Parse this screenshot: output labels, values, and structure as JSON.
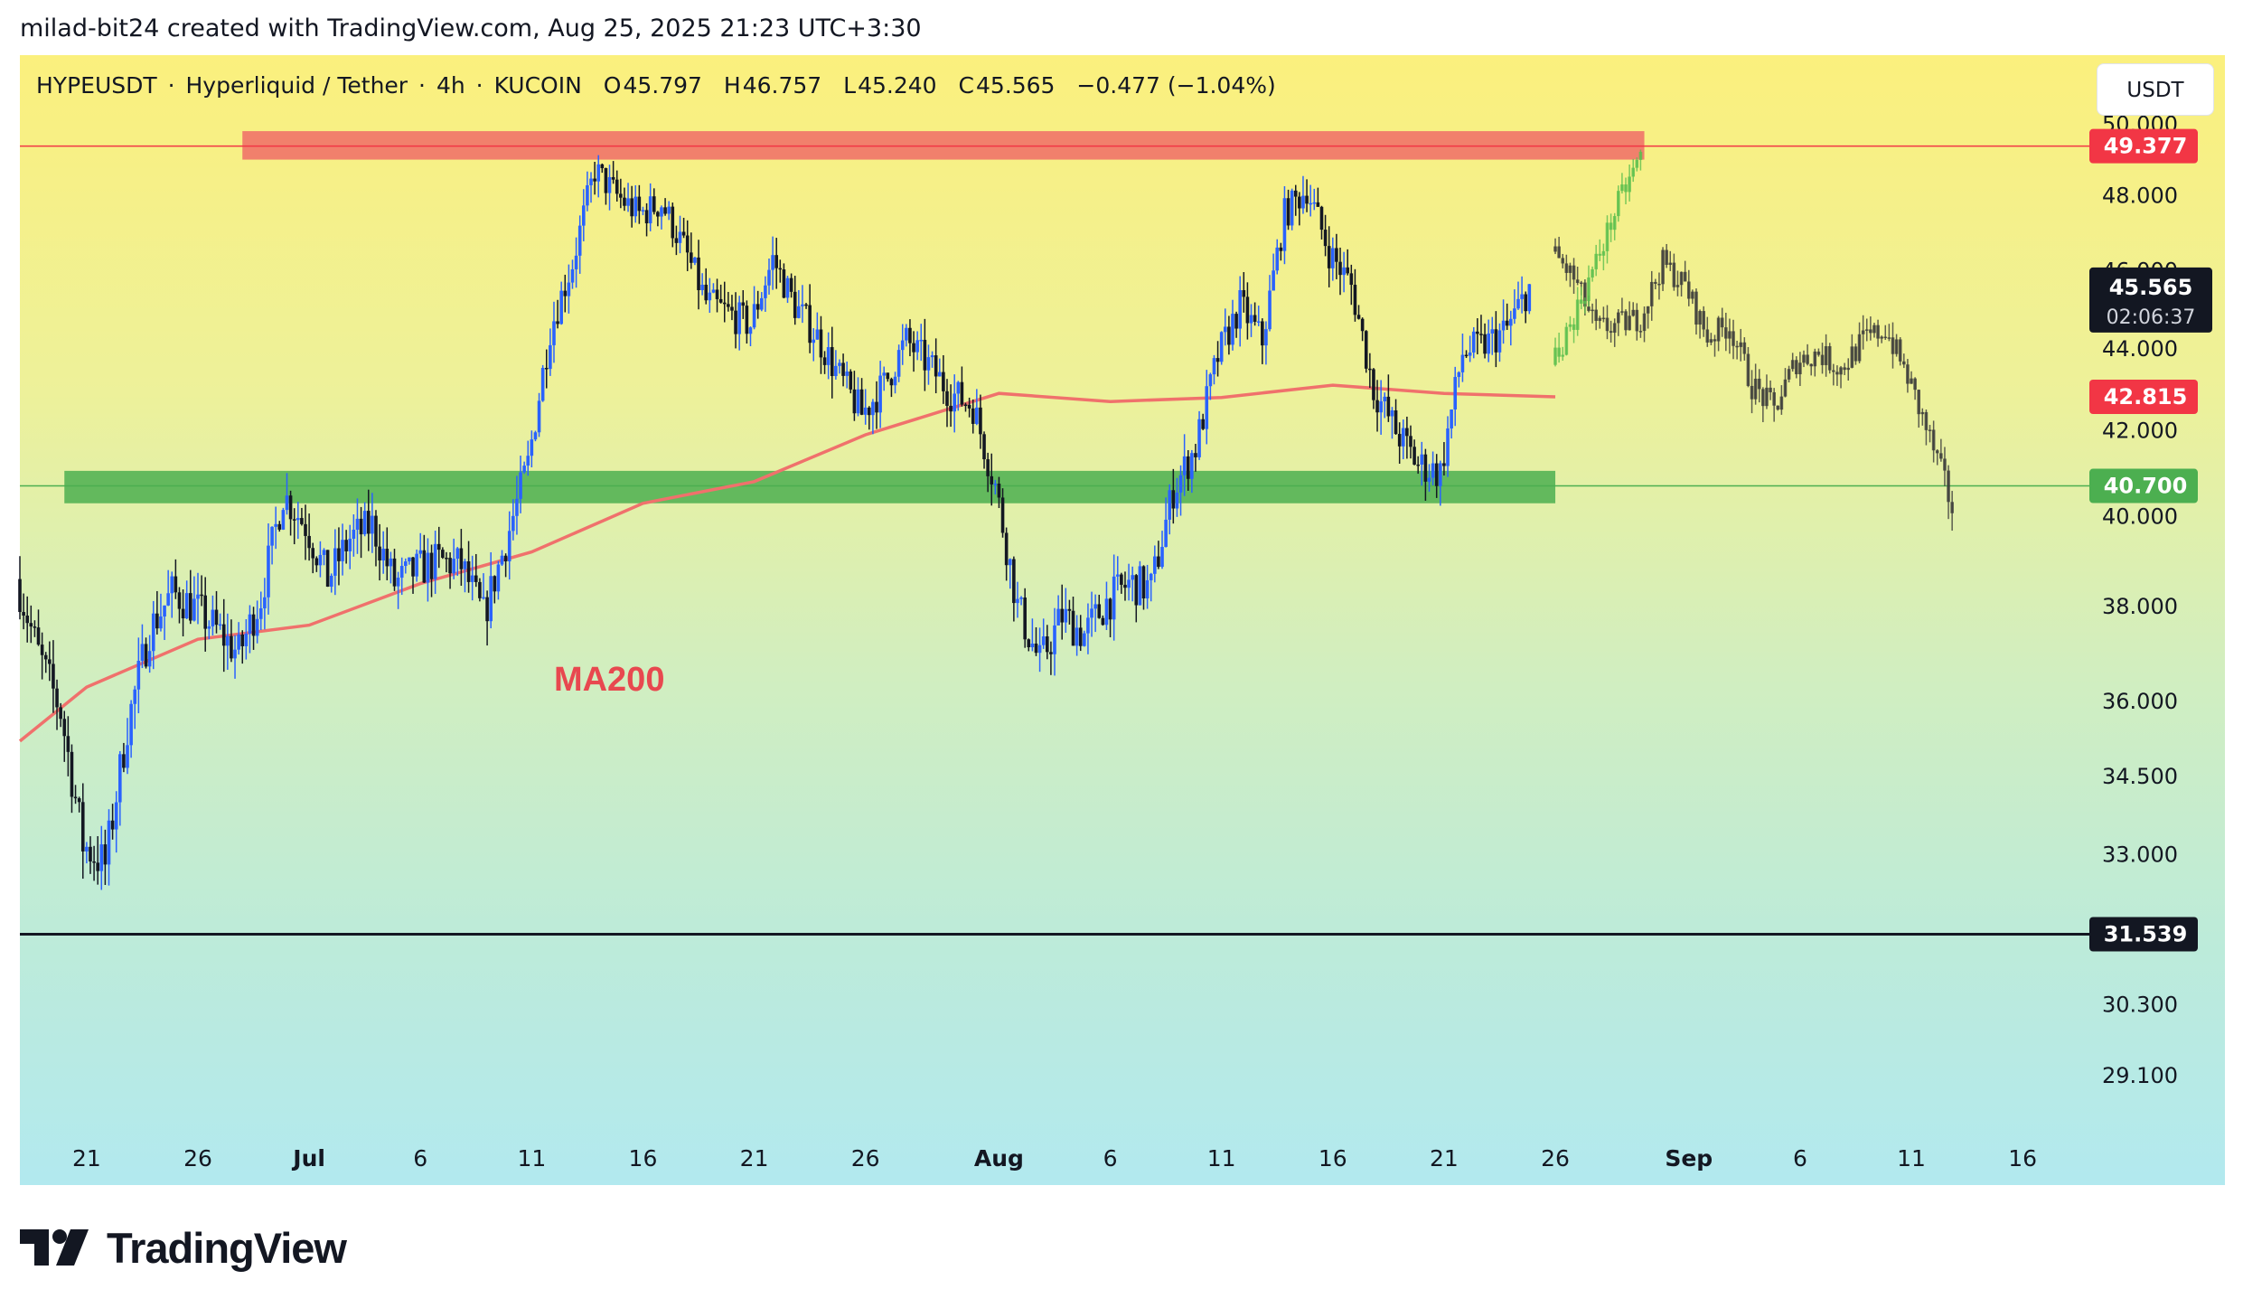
{
  "header": {
    "credit": "milad-bit24 created with TradingView.com, Aug 25, 2025 21:23 UTC+3:30"
  },
  "symbol": {
    "ticker": "HYPEUSDT",
    "name": "Hyperliquid / Tether",
    "interval": "4h",
    "exchange": "KUCOIN",
    "open": "45.797",
    "high": "46.757",
    "low": "45.240",
    "close": "45.565",
    "change": "−0.477 (−1.04%)"
  },
  "currency_button": "USDT",
  "annotation": {
    "ma_label": "MA200"
  },
  "price_tags": {
    "resistance": "49.377",
    "current": "45.565",
    "countdown": "02:06:37",
    "ma": "42.815",
    "support": "40.700",
    "low_line": "31.539"
  },
  "footer": {
    "brand": "TradingView"
  },
  "colors": {
    "resistance": "#f0796a",
    "resistance_tag": "#f23645",
    "support": "#4caf50",
    "support_tag": "#4caf50",
    "ma": "#f0716c",
    "bull": "#2962ff",
    "bear": "#131722",
    "projection_up": "#5bbf4e",
    "projection_path": "#3a3a3a"
  },
  "chart_data": {
    "type": "candlestick",
    "log_scale": true,
    "ylim": [
      28.0,
      52.0
    ],
    "y_ticks": [
      "50.000",
      "48.000",
      "46.000",
      "44.000",
      "42.000",
      "40.000",
      "38.000",
      "36.000",
      "34.500",
      "33.000",
      "30.300",
      "29.100"
    ],
    "x_ticks": [
      {
        "label": "21",
        "date": "2025-06-21"
      },
      {
        "label": "26",
        "date": "2025-06-26"
      },
      {
        "label": "Jul",
        "date": "2025-07-01",
        "bold": true
      },
      {
        "label": "6",
        "date": "2025-07-06"
      },
      {
        "label": "11",
        "date": "2025-07-11"
      },
      {
        "label": "16",
        "date": "2025-07-16"
      },
      {
        "label": "21",
        "date": "2025-07-21"
      },
      {
        "label": "26",
        "date": "2025-07-26"
      },
      {
        "label": "Aug",
        "date": "2025-08-01",
        "bold": true
      },
      {
        "label": "6",
        "date": "2025-08-06"
      },
      {
        "label": "11",
        "date": "2025-08-11"
      },
      {
        "label": "16",
        "date": "2025-08-16"
      },
      {
        "label": "21",
        "date": "2025-08-21"
      },
      {
        "label": "26",
        "date": "2025-08-26"
      },
      {
        "label": "Sep",
        "date": "2025-09-01",
        "bold": true
      },
      {
        "label": "6",
        "date": "2025-09-06"
      },
      {
        "label": "11",
        "date": "2025-09-11"
      },
      {
        "label": "16",
        "date": "2025-09-16"
      }
    ],
    "x_range": [
      "2025-06-18",
      "2025-09-19"
    ],
    "resistance_zone": {
      "low": 49.0,
      "high": 49.8,
      "from": "2025-06-28",
      "to": "2025-08-30"
    },
    "support_zone": {
      "low": 40.3,
      "high": 41.05,
      "from": "2025-06-20",
      "to": "2025-08-26"
    },
    "horizontal_lines": [
      {
        "value": 49.377,
        "color": "#f23645"
      },
      {
        "value": 40.7,
        "color": "#4caf50"
      },
      {
        "value": 31.539,
        "color": "#131722"
      }
    ],
    "price_path": {
      "dates": [
        "2025-06-18",
        "2025-06-19",
        "2025-06-20",
        "2025-06-21",
        "2025-06-22",
        "2025-06-23",
        "2025-06-24",
        "2025-06-25",
        "2025-06-26",
        "2025-06-27",
        "2025-06-28",
        "2025-06-29",
        "2025-06-30",
        "2025-07-01",
        "2025-07-02",
        "2025-07-03",
        "2025-07-04",
        "2025-07-05",
        "2025-07-06",
        "2025-07-07",
        "2025-07-08",
        "2025-07-09",
        "2025-07-10",
        "2025-07-11",
        "2025-07-12",
        "2025-07-13",
        "2025-07-14",
        "2025-07-15",
        "2025-07-16",
        "2025-07-17",
        "2025-07-18",
        "2025-07-19",
        "2025-07-20",
        "2025-07-21",
        "2025-07-22",
        "2025-07-23",
        "2025-07-24",
        "2025-07-25",
        "2025-07-26",
        "2025-07-27",
        "2025-07-28",
        "2025-07-29",
        "2025-07-30",
        "2025-07-31",
        "2025-08-01",
        "2025-08-02",
        "2025-08-03",
        "2025-08-04",
        "2025-08-05",
        "2025-08-06",
        "2025-08-07",
        "2025-08-08",
        "2025-08-09",
        "2025-08-10",
        "2025-08-11",
        "2025-08-12",
        "2025-08-13",
        "2025-08-14",
        "2025-08-15",
        "2025-08-16",
        "2025-08-17",
        "2025-08-18",
        "2025-08-19",
        "2025-08-20",
        "2025-08-21",
        "2025-08-22",
        "2025-08-23",
        "2025-08-24",
        "2025-08-25"
      ],
      "closes": [
        38.6,
        37.0,
        35.8,
        33.2,
        32.8,
        35.5,
        37.5,
        38.3,
        38.0,
        37.5,
        37.0,
        38.2,
        40.5,
        39.8,
        38.6,
        39.5,
        39.8,
        38.5,
        38.8,
        39.0,
        38.9,
        37.8,
        39.4,
        41.2,
        44.5,
        46.2,
        48.7,
        48.0,
        47.5,
        47.8,
        46.6,
        45.2,
        44.9,
        44.6,
        46.3,
        45.1,
        44.3,
        43.3,
        42.4,
        43.1,
        44.2,
        43.6,
        42.9,
        42.6,
        40.7,
        38.0,
        36.8,
        37.8,
        37.4,
        38.1,
        38.5,
        38.4,
        40.6,
        41.6,
        43.8,
        45.1,
        44.2,
        47.5,
        48.2,
        46.5,
        45.6,
        43.0,
        42.0,
        41.2,
        41.0,
        43.9,
        44.1,
        44.5,
        45.565
      ]
    },
    "ma200": {
      "dates": [
        "2025-06-18",
        "2025-06-21",
        "2025-06-26",
        "2025-07-01",
        "2025-07-06",
        "2025-07-11",
        "2025-07-16",
        "2025-07-21",
        "2025-07-26",
        "2025-08-01",
        "2025-08-06",
        "2025-08-11",
        "2025-08-16",
        "2025-08-21",
        "2025-08-26"
      ],
      "values": [
        35.2,
        36.3,
        37.3,
        37.6,
        38.5,
        39.2,
        40.3,
        40.8,
        41.9,
        42.9,
        42.7,
        42.8,
        43.1,
        42.9,
        42.815
      ]
    },
    "projection_up": {
      "dates": [
        "2025-08-26",
        "2025-08-27",
        "2025-08-28",
        "2025-08-29",
        "2025-08-30"
      ],
      "values": [
        43.6,
        44.8,
        46.2,
        47.8,
        49.1
      ]
    },
    "projection_path": {
      "dates": [
        "2025-08-26",
        "2025-08-27",
        "2025-08-28",
        "2025-08-29",
        "2025-08-30",
        "2025-08-31",
        "2025-09-01",
        "2025-09-02",
        "2025-09-03",
        "2025-09-04",
        "2025-09-05",
        "2025-09-06",
        "2025-09-07",
        "2025-09-08",
        "2025-09-09",
        "2025-09-10",
        "2025-09-11",
        "2025-09-12",
        "2025-09-13"
      ],
      "values": [
        46.5,
        45.8,
        44.5,
        44.6,
        44.8,
        46.2,
        45.6,
        44.3,
        44.6,
        43.1,
        42.5,
        43.7,
        43.9,
        43.5,
        44.2,
        44.5,
        43.3,
        41.8,
        40.2
      ]
    }
  }
}
